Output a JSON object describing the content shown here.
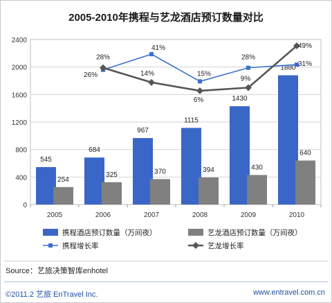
{
  "title": "2005-2010年携程与艺龙酒店预订数量对比",
  "source": "Source：艺旅决策智库enhotel",
  "footer": {
    "left": "©2011.2 艺旅 EnTravel Inc.",
    "right": "www.entravel.com.cn"
  },
  "colors": {
    "ctrip_bar": "#3a67c7",
    "elong_bar": "#808080",
    "ctrip_line": "#3a6fd0",
    "elong_line": "#555555"
  },
  "chart_data": {
    "type": "bar",
    "categories": [
      "2005",
      "2006",
      "2007",
      "2008",
      "2009",
      "2010"
    ],
    "ylim": [
      0,
      2400
    ],
    "yticks": [
      "0",
      "400",
      "800",
      "1200",
      "1600",
      "2000",
      "2400"
    ],
    "grid": true,
    "series": [
      {
        "name": "携程酒店预订数量（万间夜）",
        "type": "bar",
        "values": [
          545,
          684,
          967,
          1115,
          1430,
          1880
        ]
      },
      {
        "name": "艺龙酒店预订数量（万间夜）",
        "type": "bar",
        "values": [
          254,
          325,
          370,
          394,
          430,
          640
        ]
      },
      {
        "name": "携程增长率",
        "type": "line",
        "x": [
          "2006",
          "2007",
          "2008",
          "2009",
          "2010"
        ],
        "values": [
          26,
          41,
          15,
          28,
          31
        ],
        "labels": [
          "26%",
          "41%",
          "15%",
          "28%",
          "31%"
        ]
      },
      {
        "name": "艺龙增长率",
        "type": "line",
        "x": [
          "2006",
          "2007",
          "2008",
          "2009",
          "2010"
        ],
        "values": [
          28,
          14,
          6,
          9,
          49
        ],
        "labels": [
          "28%",
          "14%",
          "6%",
          "9%",
          "49%"
        ]
      }
    ]
  }
}
